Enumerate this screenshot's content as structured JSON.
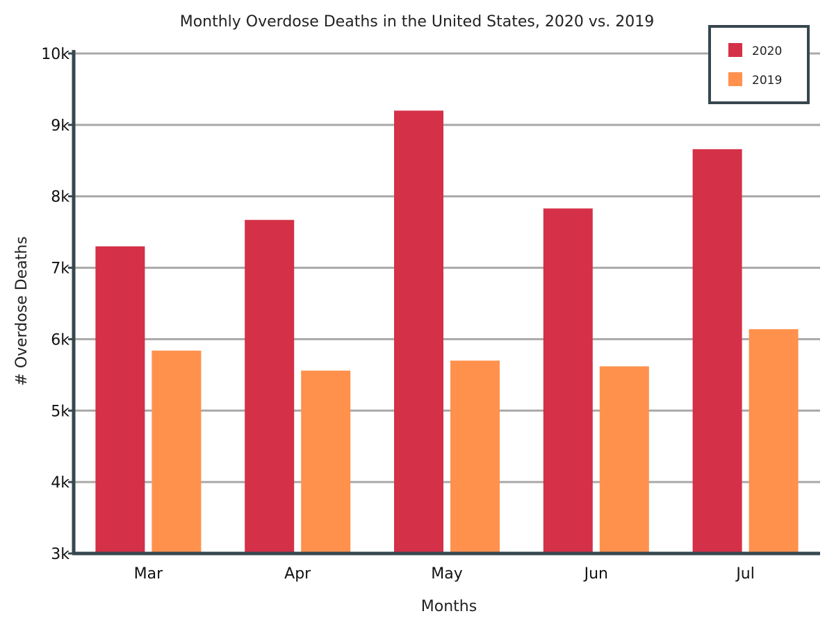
{
  "chart_data": {
    "type": "bar",
    "title": "Monthly Overdose Deaths in the United States, 2020 vs. 2019",
    "xlabel": "Months",
    "ylabel": "# Overdose Deaths",
    "categories": [
      "Mar",
      "Apr",
      "May",
      "Jun",
      "Jul"
    ],
    "ylim": [
      3000,
      10000
    ],
    "yticks": [
      3000,
      4000,
      5000,
      6000,
      7000,
      8000,
      9000,
      10000
    ],
    "ytick_labels": [
      "3k",
      "4k",
      "5k",
      "6k",
      "7k",
      "8k",
      "9k",
      "10k"
    ],
    "grid": true,
    "legend_position": "top-right",
    "series": [
      {
        "name": "2020",
        "color": "#d43047",
        "values": [
          7300,
          7670,
          9200,
          7830,
          8660
        ]
      },
      {
        "name": "2019",
        "color": "#ff914d",
        "values": [
          5840,
          5560,
          5700,
          5620,
          6140
        ]
      }
    ]
  }
}
